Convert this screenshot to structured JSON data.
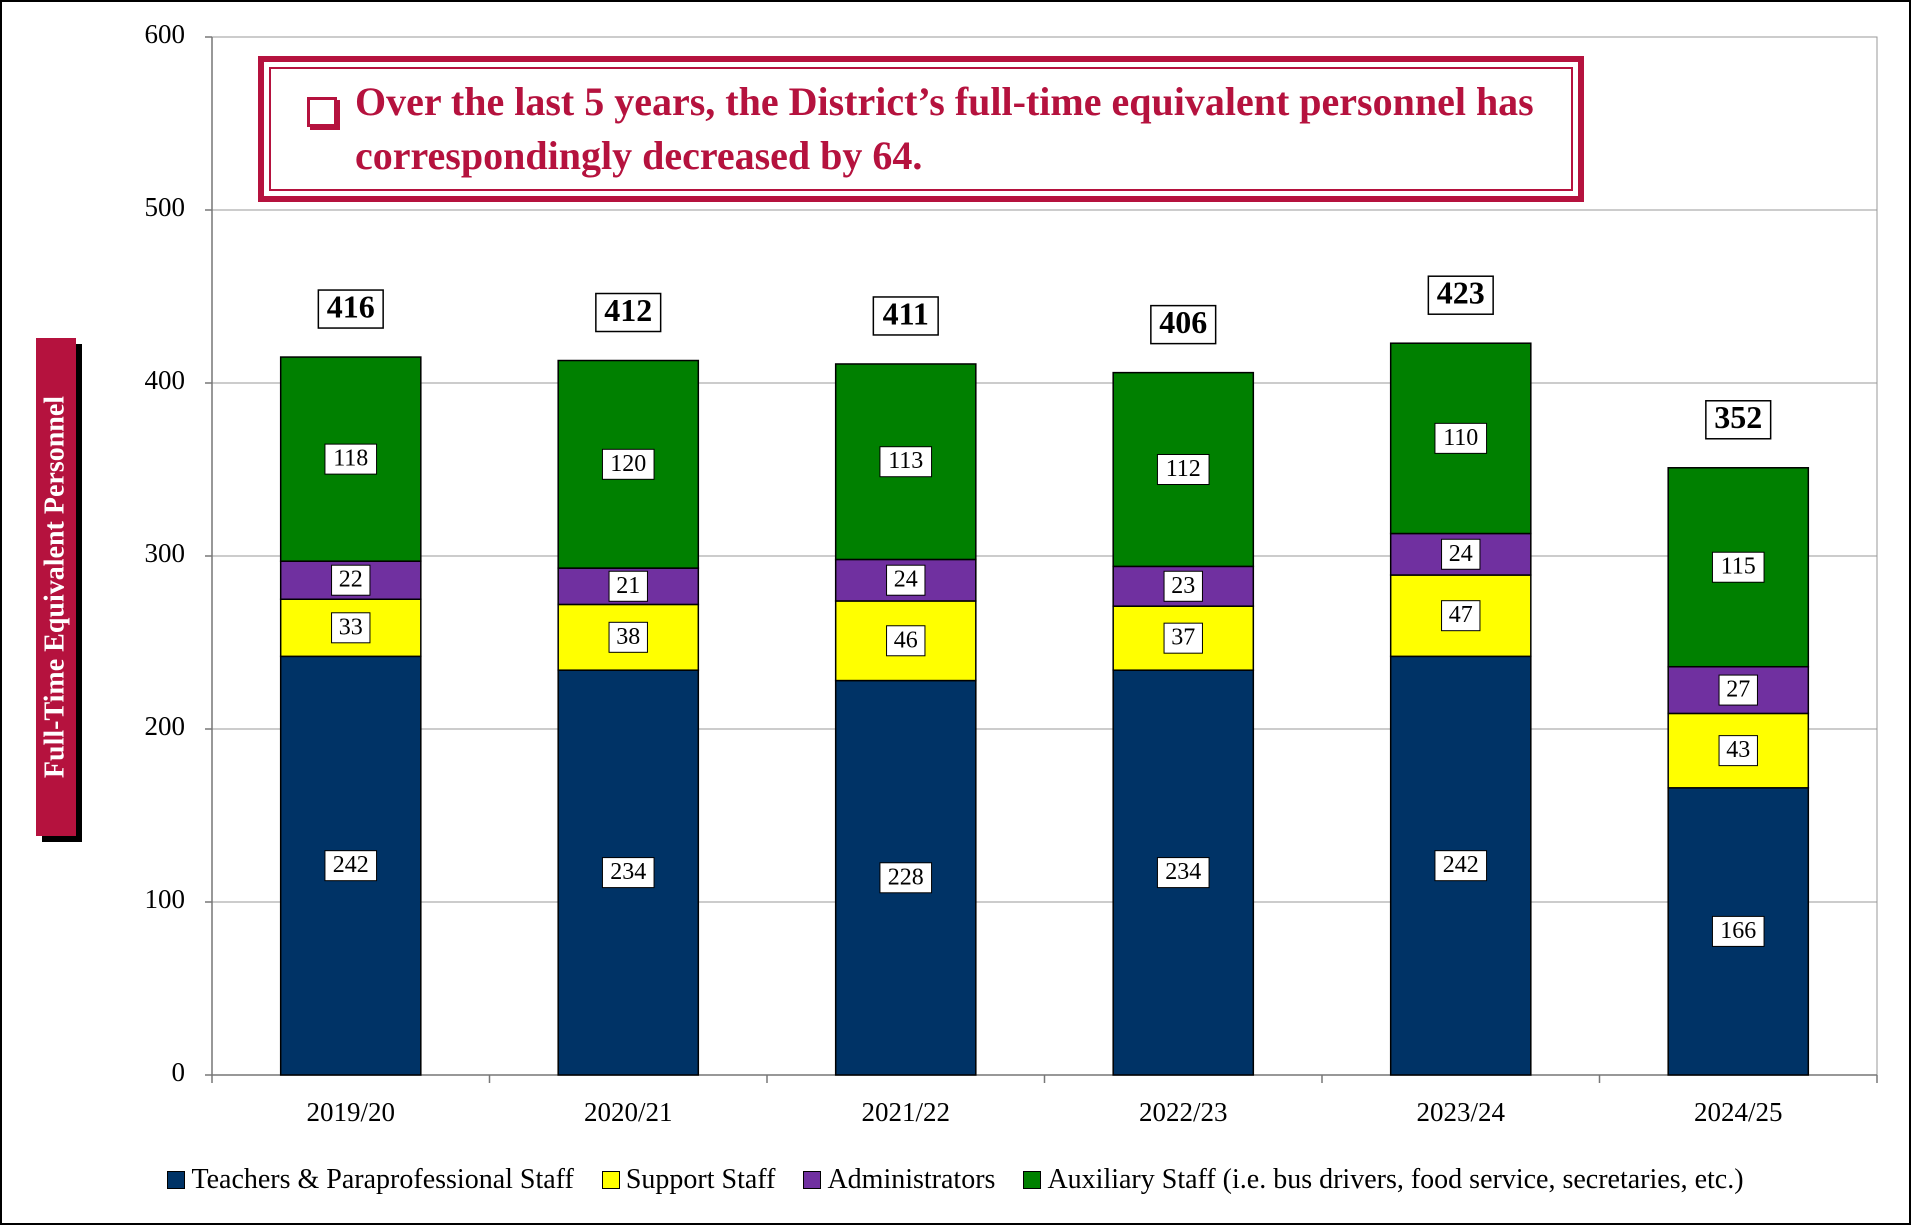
{
  "chart_data": {
    "type": "stacked-bar",
    "annotation": "Over the last 5 years, the District’s full-time equivalent personnel has correspondingly decreased by 64.",
    "ylabel": "Full-Time Equivalent Personnel",
    "categories": [
      "2019/20",
      "2020/21",
      "2021/22",
      "2022/23",
      "2023/24",
      "2024/25"
    ],
    "series": [
      {
        "name": "Teachers & Paraprofessional Staff",
        "color": "#003366",
        "values": [
          242,
          234,
          228,
          234,
          242,
          166
        ]
      },
      {
        "name": "Support Staff",
        "color": "#ffff00",
        "values": [
          33,
          38,
          46,
          37,
          47,
          43
        ]
      },
      {
        "name": "Administrators",
        "color": "#7030a0",
        "values": [
          22,
          21,
          24,
          23,
          24,
          27
        ]
      },
      {
        "name": "Auxiliary Staff (i.e. bus drivers, food service, secretaries, etc.)",
        "color": "#008000",
        "values": [
          118,
          120,
          113,
          112,
          110,
          115
        ]
      }
    ],
    "totals": [
      416,
      412,
      411,
      406,
      423,
      352
    ],
    "ylim": [
      0,
      600
    ],
    "yticks": [
      0,
      100,
      200,
      300,
      400,
      500,
      600
    ],
    "grid": true,
    "legend": "bottom"
  }
}
